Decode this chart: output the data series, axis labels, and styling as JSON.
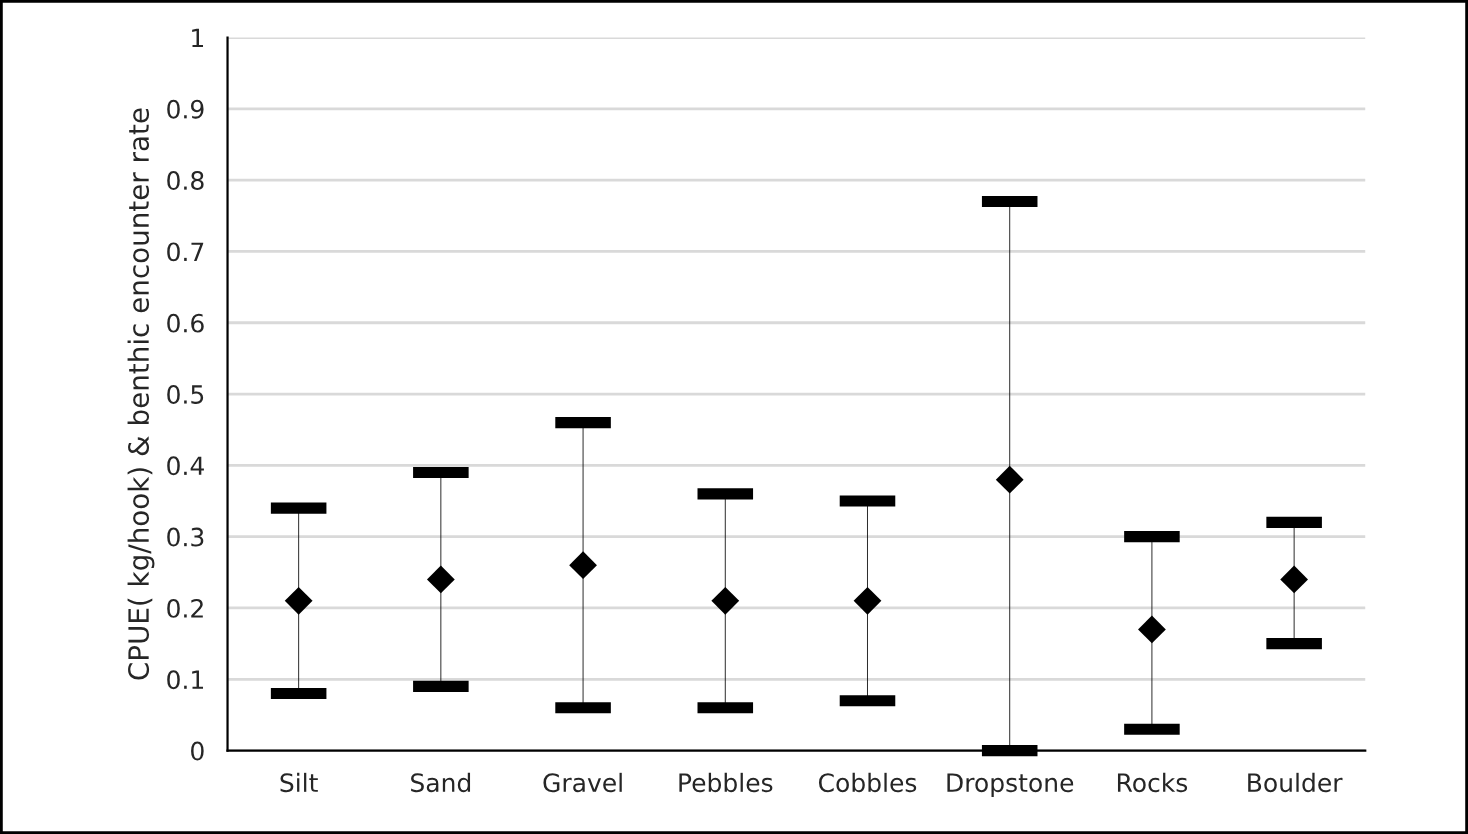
{
  "chart_data": {
    "type": "scatter",
    "ylabel": "CPUE( kg/hook) & benthic encounter rate",
    "categories": [
      "Silt",
      "Sand",
      "Gravel",
      "Pebbles",
      "Cobbles",
      "Dropstone",
      "Rocks",
      "Boulder"
    ],
    "series": [
      {
        "color": "#000000",
        "marker": "diamond",
        "values": [
          0.21,
          0.24,
          0.26,
          0.21,
          0.21,
          0.38,
          0.17,
          0.24
        ],
        "errors": [
          [
            0.08,
            0.34
          ],
          [
            0.09,
            0.39
          ],
          [
            0.06,
            0.46
          ],
          [
            0.06,
            0.36
          ],
          [
            0.07,
            0.35
          ],
          [
            0.0,
            0.77
          ],
          [
            0.03,
            0.3
          ],
          [
            0.15,
            0.32
          ]
        ]
      }
    ],
    "ylim": [
      0,
      1
    ],
    "yticks": [
      0,
      {
        "value": 0.1,
        "label": "0.1"
      },
      {
        "value": 0.2,
        "label": "0.2"
      },
      {
        "value": 0.3,
        "label": "0.3"
      },
      {
        "value": 0.4,
        "label": "0.4"
      },
      {
        "value": 0.5,
        "label": "0.5"
      },
      {
        "value": 0.6,
        "label": "0.6"
      },
      {
        "value": 0.7,
        "label": "0.7"
      },
      {
        "value": 0.8,
        "label": "0.8"
      },
      {
        "value": 0.9,
        "label": "0.9"
      },
      1
    ],
    "grid": "y"
  }
}
